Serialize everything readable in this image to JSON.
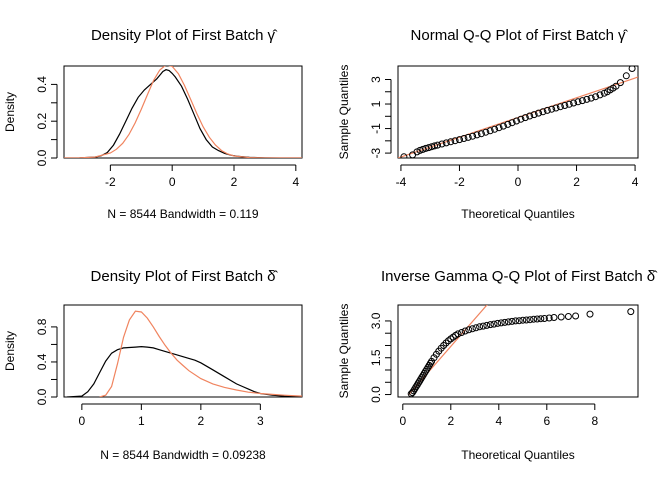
{
  "colors": {
    "empirical": "#000000",
    "theoretical": "#f0845f",
    "points": "#000000"
  },
  "chart_data": [
    {
      "type": "line",
      "title": "Density Plot of First Batch",
      "title_symbol": "γ̂",
      "xlabel": "N = 8544   Bandwidth = 0.119",
      "ylabel": "Density",
      "xlim": [
        -3.5,
        4.2
      ],
      "ylim": [
        0,
        0.5
      ],
      "xticks": [
        -2,
        0,
        2,
        4
      ],
      "yticks": [
        0.0,
        0.1,
        0.2,
        0.3,
        0.4
      ],
      "yticklabels": [
        "0.0",
        "",
        "0.2",
        "",
        "0.4"
      ],
      "grid": false,
      "series": [
        {
          "x": [
            -3.6,
            -3.0,
            -2.5,
            -2.3,
            -2.1,
            -1.9,
            -1.7,
            -1.5,
            -1.3,
            -1.1,
            -0.9,
            -0.7,
            -0.5,
            -0.4,
            -0.3,
            -0.2,
            -0.1,
            0.0,
            0.1,
            0.3,
            0.5,
            0.7,
            0.9,
            1.1,
            1.3,
            1.5,
            1.7,
            1.9,
            2.1,
            2.5,
            3.0,
            3.5,
            4.2
          ],
          "y": [
            0,
            0.001,
            0.005,
            0.012,
            0.03,
            0.07,
            0.13,
            0.2,
            0.27,
            0.33,
            0.37,
            0.4,
            0.43,
            0.45,
            0.47,
            0.48,
            0.475,
            0.46,
            0.44,
            0.39,
            0.32,
            0.24,
            0.16,
            0.1,
            0.06,
            0.04,
            0.025,
            0.015,
            0.01,
            0.004,
            0.001,
            0,
            0
          ]
        },
        {
          "x": [
            -3.5,
            -3.0,
            -2.5,
            -2.0,
            -1.8,
            -1.6,
            -1.4,
            -1.2,
            -1.0,
            -0.8,
            -0.6,
            -0.4,
            -0.2,
            0.0,
            0.2,
            0.4,
            0.6,
            0.8,
            1.0,
            1.2,
            1.4,
            1.6,
            1.8,
            2.0,
            2.5,
            3.0,
            3.5,
            4.2
          ],
          "y": [
            0,
            0.001,
            0.005,
            0.027,
            0.048,
            0.08,
            0.127,
            0.19,
            0.265,
            0.345,
            0.422,
            0.478,
            0.506,
            0.498,
            0.458,
            0.394,
            0.318,
            0.24,
            0.17,
            0.113,
            0.07,
            0.04,
            0.022,
            0.011,
            0.002,
            0,
            0,
            0
          ]
        }
      ]
    },
    {
      "type": "scatter",
      "title": "Normal Q-Q Plot of First Batch",
      "title_symbol": "γ̂",
      "xlabel": "Theoretical Quantiles",
      "ylabel": "Sample Quantiles",
      "xlim": [
        -4.1,
        4.1
      ],
      "ylim": [
        -3.4,
        4.1
      ],
      "xticks": [
        -4,
        -2,
        0,
        2,
        4
      ],
      "yticks": [
        -3,
        -2,
        -1,
        0,
        1,
        2,
        3
      ],
      "yticklabels": [
        "-3",
        "",
        "-1",
        "",
        "1",
        "",
        "3"
      ],
      "grid": false,
      "ref_line": {
        "x": [
          -4.1,
          4.1
        ],
        "y": [
          -3.4,
          3.2
        ]
      },
      "series": [
        {
          "x": [
            -3.9,
            -3.6,
            -3.45,
            -3.35,
            -3.25,
            -3.15,
            -3.05,
            -2.95,
            -2.85,
            -2.75,
            -2.6,
            -2.45,
            -2.3,
            -2.15,
            -2.0,
            -1.85,
            -1.7,
            -1.55,
            -1.4,
            -1.25,
            -1.1,
            -0.95,
            -0.8,
            -0.65,
            -0.5,
            -0.35,
            -0.2,
            -0.05,
            0.1,
            0.25,
            0.4,
            0.55,
            0.7,
            0.85,
            1.0,
            1.15,
            1.3,
            1.45,
            1.6,
            1.75,
            1.9,
            2.05,
            2.2,
            2.35,
            2.5,
            2.65,
            2.8,
            2.95,
            3.05,
            3.15,
            3.25,
            3.35,
            3.5,
            3.7,
            3.9
          ],
          "y": [
            -3.3,
            -3.15,
            -2.9,
            -2.78,
            -2.7,
            -2.62,
            -2.55,
            -2.48,
            -2.41,
            -2.35,
            -2.26,
            -2.17,
            -2.08,
            -1.99,
            -1.9,
            -1.81,
            -1.72,
            -1.62,
            -1.52,
            -1.42,
            -1.3,
            -1.18,
            -1.06,
            -0.93,
            -0.8,
            -0.66,
            -0.52,
            -0.38,
            -0.24,
            -0.11,
            0.02,
            0.14,
            0.26,
            0.37,
            0.48,
            0.58,
            0.68,
            0.78,
            0.88,
            0.98,
            1.08,
            1.18,
            1.28,
            1.38,
            1.48,
            1.6,
            1.74,
            1.88,
            2.0,
            2.15,
            2.3,
            2.45,
            2.75,
            3.3,
            3.9
          ]
        }
      ]
    },
    {
      "type": "line",
      "title": "Density Plot of First Batch",
      "title_symbol": "δ̂",
      "xlabel": "N = 8544   Bandwidth = 0.09238",
      "ylabel": "Density",
      "xlim": [
        -0.3,
        3.7
      ],
      "ylim": [
        0,
        1.05
      ],
      "xticks": [
        0,
        1,
        2,
        3
      ],
      "yticks": [
        0.0,
        0.2,
        0.4,
        0.6,
        0.8
      ],
      "yticklabels": [
        "0.0",
        "",
        "0.4",
        "",
        "0.8"
      ],
      "grid": false,
      "series": [
        {
          "x": [
            -0.25,
            0.0,
            0.1,
            0.2,
            0.3,
            0.4,
            0.5,
            0.6,
            0.7,
            0.8,
            0.9,
            1.0,
            1.1,
            1.2,
            1.3,
            1.4,
            1.5,
            1.6,
            1.7,
            1.8,
            1.9,
            2.0,
            2.1,
            2.2,
            2.3,
            2.4,
            2.5,
            2.6,
            2.7,
            2.8,
            2.9,
            3.0,
            3.2,
            3.4,
            3.7
          ],
          "y": [
            0,
            0.01,
            0.06,
            0.15,
            0.28,
            0.41,
            0.5,
            0.54,
            0.56,
            0.565,
            0.57,
            0.575,
            0.57,
            0.56,
            0.54,
            0.52,
            0.5,
            0.48,
            0.46,
            0.44,
            0.42,
            0.39,
            0.35,
            0.31,
            0.27,
            0.23,
            0.19,
            0.15,
            0.12,
            0.09,
            0.06,
            0.04,
            0.02,
            0.01,
            0
          ]
        },
        {
          "x": [
            0.3,
            0.4,
            0.5,
            0.6,
            0.7,
            0.8,
            0.9,
            1.0,
            1.1,
            1.2,
            1.3,
            1.4,
            1.5,
            1.6,
            1.7,
            1.8,
            2.0,
            2.2,
            2.4,
            2.6,
            2.8,
            3.0,
            3.2,
            3.4,
            3.7
          ],
          "y": [
            0,
            0.02,
            0.12,
            0.38,
            0.68,
            0.88,
            0.98,
            0.97,
            0.9,
            0.8,
            0.69,
            0.59,
            0.5,
            0.42,
            0.36,
            0.3,
            0.21,
            0.15,
            0.11,
            0.08,
            0.055,
            0.04,
            0.03,
            0.02,
            0.01
          ]
        }
      ]
    },
    {
      "type": "scatter",
      "title": "Inverse Gamma Q-Q Plot of First Batch",
      "title_symbol": "δ̂",
      "xlabel": "Theoretical Quantiles",
      "ylabel": "Sample Quantiles",
      "xlim": [
        -0.2,
        9.8
      ],
      "ylim": [
        -0.1,
        3.65
      ],
      "xticks": [
        0,
        2,
        4,
        6,
        8
      ],
      "yticks": [
        0.0,
        0.5,
        1.0,
        1.5,
        2.0,
        2.5,
        3.0
      ],
      "yticklabels": [
        "0.0",
        "",
        "",
        "1.5",
        "",
        "",
        "3.0"
      ],
      "grid": false,
      "ref_line": {
        "x": [
          0.25,
          3.55
        ],
        "y": [
          0.0,
          3.7
        ]
      },
      "series": [
        {
          "x": [
            0.35,
            0.4,
            0.45,
            0.5,
            0.55,
            0.6,
            0.65,
            0.7,
            0.75,
            0.8,
            0.85,
            0.9,
            0.95,
            1.0,
            1.05,
            1.1,
            1.15,
            1.2,
            1.3,
            1.4,
            1.5,
            1.6,
            1.7,
            1.8,
            1.9,
            2.0,
            2.1,
            2.2,
            2.3,
            2.45,
            2.6,
            2.75,
            2.9,
            3.05,
            3.2,
            3.35,
            3.5,
            3.65,
            3.8,
            3.95,
            4.1,
            4.25,
            4.4,
            4.55,
            4.7,
            4.85,
            5.0,
            5.15,
            5.3,
            5.45,
            5.6,
            5.75,
            5.9,
            6.1,
            6.3,
            6.6,
            6.9,
            7.2,
            7.8,
            9.5
          ],
          "y": [
            0.03,
            0.08,
            0.15,
            0.23,
            0.31,
            0.39,
            0.47,
            0.55,
            0.63,
            0.71,
            0.79,
            0.87,
            0.95,
            1.03,
            1.11,
            1.19,
            1.27,
            1.35,
            1.5,
            1.64,
            1.77,
            1.89,
            2.0,
            2.1,
            2.19,
            2.27,
            2.34,
            2.41,
            2.47,
            2.53,
            2.59,
            2.64,
            2.68,
            2.72,
            2.76,
            2.79,
            2.82,
            2.85,
            2.87,
            2.9,
            2.92,
            2.94,
            2.96,
            2.98,
            3.0,
            3.01,
            3.03,
            3.04,
            3.05,
            3.07,
            3.08,
            3.09,
            3.1,
            3.12,
            3.14,
            3.16,
            3.18,
            3.2,
            3.28,
            3.38
          ]
        }
      ]
    }
  ]
}
